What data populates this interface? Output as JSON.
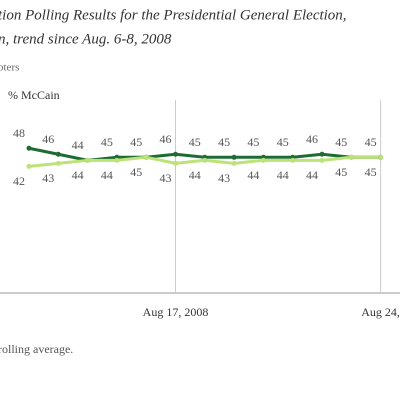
{
  "chart_data": {
    "type": "line",
    "title": "tion Polling Results for the Presidential General Election,",
    "subtitle": "n, trend since Aug. 6-8, 2008",
    "population": "oters",
    "footnote": "rolling average.",
    "categories": [
      null,
      null,
      null,
      null,
      null,
      "Aug 17, 2008",
      null,
      null,
      null,
      null,
      null,
      null,
      "Aug 24,"
    ],
    "series": [
      {
        "color": "#1e6b34",
        "values": [
          48,
          46,
          44,
          45,
          45,
          46,
          45,
          45,
          45,
          45,
          46,
          45,
          45
        ]
      },
      {
        "name": "% McCain",
        "color": "#bde27a",
        "values": [
          42,
          43,
          44,
          44,
          45,
          43,
          44,
          43,
          44,
          44,
          44,
          45,
          45
        ]
      }
    ],
    "ylim": [
      0,
      64
    ]
  }
}
